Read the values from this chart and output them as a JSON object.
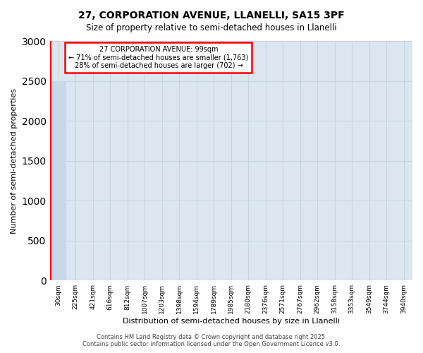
{
  "title1": "27, CORPORATION AVENUE, LLANELLI, SA15 3PF",
  "title2": "Size of property relative to semi-detached houses in Llanelli",
  "xlabel": "Distribution of semi-detached houses by size in Llanelli",
  "ylabel": "Number of semi-detached properties",
  "annotation_title": "27 CORPORATION AVENUE: 99sqm",
  "annotation_line1": "← 71% of semi-detached houses are smaller (1,763)",
  "annotation_line2": "28% of semi-detached houses are larger (702) →",
  "footer1": "Contains HM Land Registry data © Crown copyright and database right 2025.",
  "footer2": "Contains public sector information licensed under the Open Government Licence v3.0.",
  "bar_color": "#c8d8e8",
  "grid_color": "#c8d4e0",
  "bg_color": "#dce6f0",
  "ylim": [
    0,
    3000
  ],
  "yticks": [
    0,
    500,
    1000,
    1500,
    2000,
    2500,
    3000
  ],
  "bin_labels": [
    "30sqm",
    "225sqm",
    "421sqm",
    "616sqm",
    "812sqm",
    "1007sqm",
    "1203sqm",
    "1398sqm",
    "1594sqm",
    "1789sqm",
    "1985sqm",
    "2180sqm",
    "2376sqm",
    "2571sqm",
    "2767sqm",
    "2962sqm",
    "3158sqm",
    "3353sqm",
    "3549sqm",
    "3744sqm",
    "3940sqm"
  ],
  "bar_heights": [
    2500,
    0,
    0,
    0,
    0,
    0,
    0,
    0,
    0,
    0,
    0,
    0,
    0,
    0,
    0,
    0,
    0,
    0,
    0,
    0,
    0
  ]
}
